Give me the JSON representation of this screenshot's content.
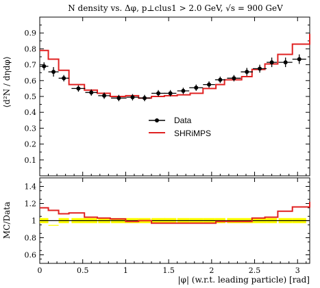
{
  "chart_data": [
    {
      "type": "line",
      "title": "N density vs. Δφ, p⊥clus1 > 2.0 GeV, √s = 900 GeV",
      "ylabel": "⟨d²N / dηdφ⟩",
      "xlim": [
        0,
        3.1416
      ],
      "ylim": [
        0.0,
        1.0
      ],
      "yticks": [
        "0.1",
        "0.2",
        "0.3",
        "0.4",
        "0.5",
        "0.6",
        "0.7",
        "0.8",
        "0.9"
      ],
      "legend": {
        "placement": "middle-right"
      },
      "series": [
        {
          "name": "Data",
          "style": "points",
          "color": "#000000",
          "x": [
            0.05,
            0.16,
            0.28,
            0.45,
            0.6,
            0.75,
            0.92,
            1.08,
            1.22,
            1.38,
            1.52,
            1.67,
            1.82,
            1.97,
            2.1,
            2.26,
            2.41,
            2.56,
            2.7,
            2.86,
            3.02
          ],
          "y": [
            0.69,
            0.655,
            0.615,
            0.55,
            0.525,
            0.505,
            0.49,
            0.495,
            0.49,
            0.52,
            0.52,
            0.535,
            0.555,
            0.575,
            0.605,
            0.615,
            0.655,
            0.675,
            0.715,
            0.715,
            0.735
          ],
          "yerr": [
            0.025,
            0.03,
            0.02,
            0.02,
            0.02,
            0.02,
            0.02,
            0.02,
            0.02,
            0.02,
            0.02,
            0.02,
            0.02,
            0.02,
            0.02,
            0.02,
            0.025,
            0.025,
            0.03,
            0.03,
            0.03
          ],
          "xerr": [
            0.05,
            0.06,
            0.06,
            0.08,
            0.07,
            0.07,
            0.09,
            0.07,
            0.07,
            0.08,
            0.07,
            0.07,
            0.08,
            0.07,
            0.06,
            0.08,
            0.07,
            0.08,
            0.06,
            0.08,
            0.08
          ]
        },
        {
          "name": "SHRiMPS",
          "style": "step",
          "color": "#e02020",
          "edges": [
            0.0,
            0.1,
            0.22,
            0.34,
            0.52,
            0.67,
            0.82,
            1.0,
            1.15,
            1.3,
            1.45,
            1.6,
            1.75,
            1.9,
            2.05,
            2.15,
            2.35,
            2.47,
            2.62,
            2.77,
            2.94,
            3.1416
          ],
          "y": [
            0.79,
            0.735,
            0.665,
            0.575,
            0.54,
            0.52,
            0.5,
            0.505,
            0.49,
            0.5,
            0.505,
            0.51,
            0.52,
            0.55,
            0.575,
            0.605,
            0.625,
            0.67,
            0.705,
            0.765,
            0.83,
            0.895
          ]
        }
      ]
    },
    {
      "type": "line",
      "ylabel": "MC/Data",
      "xlabel": "|φ| (w.r.t. leading particle) [rad]",
      "xlim": [
        0,
        3.1416
      ],
      "ylim": [
        0.5,
        1.5
      ],
      "yticks": [
        "0.6",
        "0.8",
        "1",
        "1.2",
        "1.4"
      ],
      "xticks": [
        "0",
        "0.5",
        "1",
        "1.5",
        "2",
        "2.5",
        "3"
      ],
      "band_color": "#ffff00",
      "band": [
        1.03,
        0.95,
        1.03,
        1.03,
        1.03,
        1.03,
        1.03,
        1.03,
        1.03,
        1.03,
        1.03,
        1.03,
        1.03,
        1.03,
        1.03,
        1.03,
        1.03,
        1.03,
        1.03,
        1.03,
        1.03
      ],
      "band_low": [
        0.97,
        0.94,
        0.97,
        0.97,
        0.97,
        0.97,
        0.97,
        0.97,
        0.97,
        0.97,
        0.97,
        0.97,
        0.97,
        0.97,
        0.97,
        0.97,
        0.97,
        0.97,
        0.97,
        0.97,
        0.97
      ],
      "ratio_edges": [
        0.0,
        0.1,
        0.22,
        0.34,
        0.52,
        0.67,
        0.82,
        1.0,
        1.15,
        1.3,
        1.45,
        1.6,
        1.75,
        1.9,
        2.05,
        2.15,
        2.35,
        2.47,
        2.62,
        2.77,
        2.94,
        3.1416
      ],
      "ratio": [
        1.15,
        1.12,
        1.08,
        1.09,
        1.04,
        1.03,
        1.02,
        0.99,
        1.0,
        0.97,
        0.97,
        0.97,
        0.97,
        0.97,
        0.99,
        0.99,
        0.99,
        1.03,
        1.04,
        1.11,
        1.16,
        1.22
      ]
    }
  ]
}
